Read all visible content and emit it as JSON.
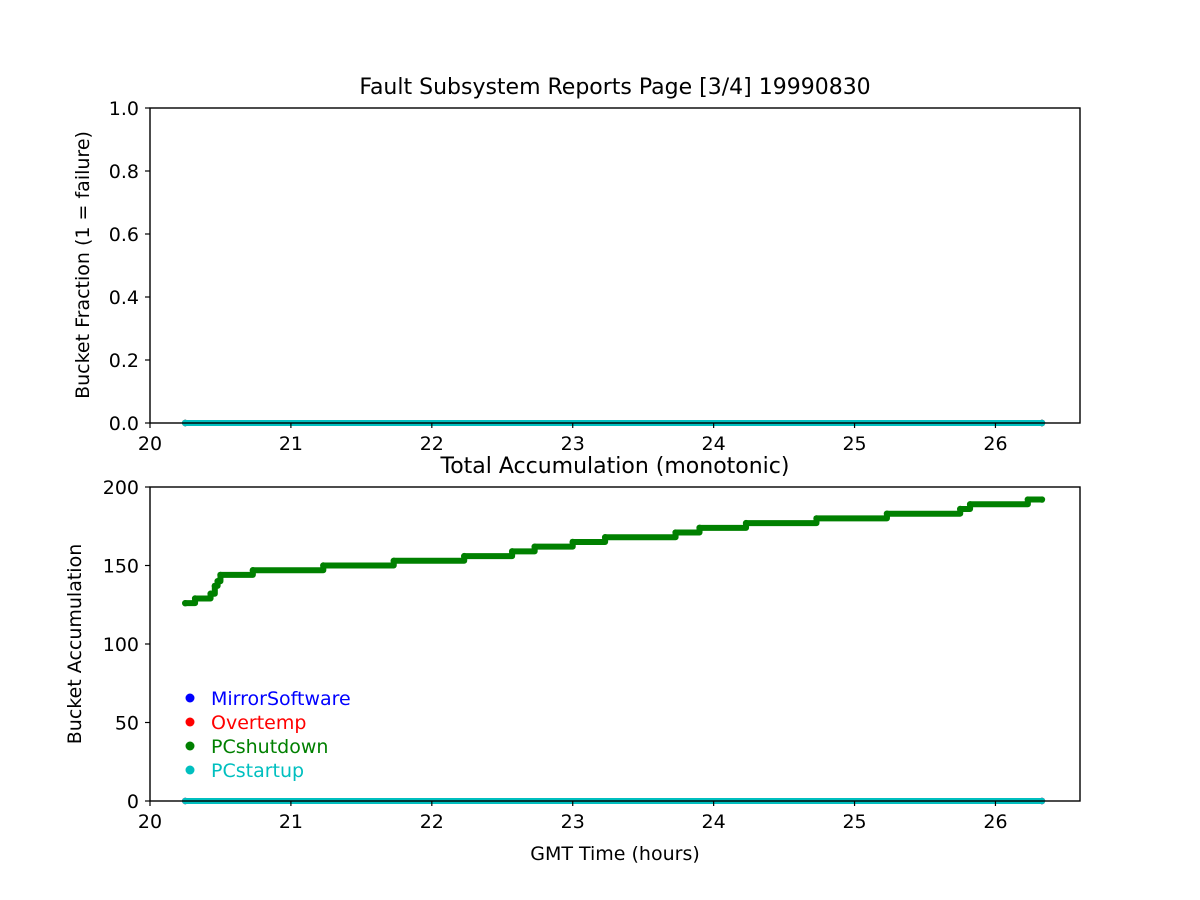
{
  "chart_data": [
    {
      "type": "scatter",
      "title": "Fault Subsystem Reports Page [3/4] 19990830",
      "xlabel": "",
      "ylabel": "Bucket Fraction (1 = failure)",
      "xlim": [
        20.0,
        26.6
      ],
      "ylim": [
        0.0,
        1.0
      ],
      "xticks": [
        20,
        21,
        22,
        23,
        24,
        25,
        26
      ],
      "yticks": [
        "0.0",
        "0.2",
        "0.4",
        "0.6",
        "0.8",
        "1.0"
      ],
      "grid": false,
      "series": [
        {
          "name": "MirrorSoftware",
          "color": "#0000ff",
          "points": [
            [
              20.25,
              0
            ],
            [
              26.33,
              0
            ]
          ]
        },
        {
          "name": "Overtemp",
          "color": "#ff0000",
          "points": [
            [
              20.25,
              0
            ],
            [
              26.33,
              0
            ]
          ]
        },
        {
          "name": "PCshutdown",
          "color": "#008000",
          "points": [
            [
              20.25,
              0
            ],
            [
              26.33,
              0
            ]
          ]
        },
        {
          "name": "PCstartup",
          "color": "#00bfbf",
          "points": [
            [
              20.25,
              0
            ],
            [
              26.33,
              0
            ]
          ]
        }
      ]
    },
    {
      "type": "scatter",
      "title": "Total Accumulation (monotonic)",
      "xlabel": "GMT Time (hours)",
      "ylabel": "Bucket Accumulation",
      "xlim": [
        20.0,
        26.6
      ],
      "ylim": [
        0,
        200
      ],
      "xticks": [
        20,
        21,
        22,
        23,
        24,
        25,
        26
      ],
      "yticks": [
        "0",
        "50",
        "100",
        "150",
        "200"
      ],
      "grid": false,
      "legend_position": "lower-left",
      "series": [
        {
          "name": "MirrorSoftware",
          "color": "#0000ff",
          "points": [
            [
              20.25,
              0
            ],
            [
              26.33,
              0
            ]
          ]
        },
        {
          "name": "Overtemp",
          "color": "#ff0000",
          "points": [
            [
              20.25,
              0
            ],
            [
              26.33,
              0
            ]
          ]
        },
        {
          "name": "PCshutdown",
          "color": "#008000",
          "points": [
            [
              20.25,
              126
            ],
            [
              20.32,
              129
            ],
            [
              20.43,
              132
            ],
            [
              20.46,
              137
            ],
            [
              20.48,
              140
            ],
            [
              20.5,
              144
            ],
            [
              20.73,
              147
            ],
            [
              21.23,
              150
            ],
            [
              21.73,
              153
            ],
            [
              22.23,
              156
            ],
            [
              22.57,
              159
            ],
            [
              22.73,
              162
            ],
            [
              23.0,
              165
            ],
            [
              23.23,
              168
            ],
            [
              23.73,
              171
            ],
            [
              23.9,
              174
            ],
            [
              24.23,
              177
            ],
            [
              24.73,
              180
            ],
            [
              25.23,
              183
            ],
            [
              25.75,
              186
            ],
            [
              25.82,
              189
            ],
            [
              26.23,
              192
            ],
            [
              26.33,
              192
            ]
          ]
        },
        {
          "name": "PCstartup",
          "color": "#00bfbf",
          "points": [
            [
              20.25,
              0
            ],
            [
              26.33,
              0
            ]
          ]
        }
      ]
    }
  ]
}
